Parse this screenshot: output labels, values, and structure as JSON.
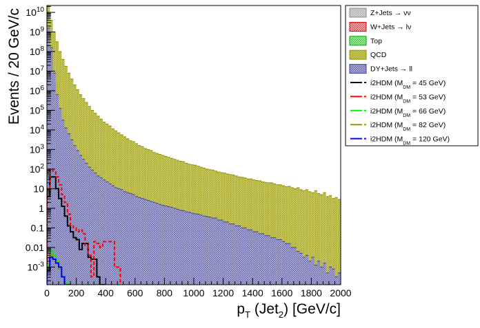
{
  "chart_data": {
    "type": "histogram",
    "xlabel_main": "p",
    "xlabel_sub": "T",
    "xlabel_mid": " (Jet",
    "xlabel_sub2": "2",
    "xlabel_tail": ") [GeV/c]",
    "ylabel": "Events / 20 GeV/c",
    "x_range": [
      0,
      2000
    ],
    "y_log_range": [
      -3.9,
      10.35
    ],
    "bin_width": 20,
    "x_ticks": [
      "0",
      "200",
      "400",
      "600",
      "800",
      "1000",
      "1200",
      "1400",
      "1600",
      "1800",
      "2000"
    ],
    "y_ticks": [
      {
        "exp": -3,
        "label_base": "10",
        "label_exp": "-3"
      },
      {
        "exp": -2,
        "label": "0.01"
      },
      {
        "exp": -1,
        "label": "0.1"
      },
      {
        "exp": 0,
        "label": "1"
      },
      {
        "exp": 1,
        "label": "10"
      },
      {
        "exp": 2,
        "label_base": "10",
        "label_exp": "2"
      },
      {
        "exp": 3,
        "label_base": "10",
        "label_exp": "3"
      },
      {
        "exp": 4,
        "label_base": "10",
        "label_exp": "4"
      },
      {
        "exp": 5,
        "label_base": "10",
        "label_exp": "5"
      },
      {
        "exp": 6,
        "label_base": "10",
        "label_exp": "6"
      },
      {
        "exp": 7,
        "label_base": "10",
        "label_exp": "7"
      },
      {
        "exp": 8,
        "label_base": "10",
        "label_exp": "8"
      },
      {
        "exp": 9,
        "label_base": "10",
        "label_exp": "9"
      },
      {
        "exp": 10,
        "label_base": "10",
        "label_exp": "10"
      }
    ],
    "stack_log10": {
      "dy_jets": [
        9.2,
        8.2,
        6.9,
        5.8,
        5.1,
        4.5,
        4.1,
        3.8,
        3.5,
        3.2,
        2.95,
        2.7,
        2.5,
        2.3,
        2.1,
        1.95,
        1.8,
        1.65,
        1.55,
        1.45,
        1.35,
        1.25,
        1.15,
        1.05,
        1.0,
        0.95,
        0.85,
        0.8,
        0.75,
        0.7,
        0.6,
        0.55,
        0.5,
        0.45,
        0.4,
        0.35,
        0.3,
        0.25,
        0.2,
        0.15,
        0.12,
        0.08,
        0.05,
        0.0,
        -0.05,
        -0.1,
        -0.12,
        -0.18,
        -0.2,
        -0.25,
        -0.28,
        -0.3,
        -0.35,
        -0.4,
        -0.42,
        -0.45,
        -0.5,
        -0.5,
        -0.6,
        -0.6,
        -0.7,
        -0.7,
        -0.8,
        -0.8,
        -0.9,
        -0.9,
        -1.0,
        -1.0,
        -1.1,
        -1.1,
        -1.2,
        -1.2,
        -1.3,
        -1.3,
        -1.4,
        -1.4,
        -1.5,
        -1.5,
        -1.6,
        -1.6,
        -1.7,
        -1.8,
        -1.8,
        -2.0,
        -2.0,
        -2.2,
        -2.3,
        -2.5,
        -2.4,
        -2.7,
        -2.5,
        -2.9,
        -2.7,
        -3.0,
        -2.8,
        -3.3,
        -3.0,
        -3.1,
        -3.5,
        -3.3
      ],
      "qcd": [
        10.3,
        9.6,
        9.0,
        8.5,
        8.0,
        7.6,
        7.25,
        6.9,
        6.6,
        6.3,
        6.05,
        5.8,
        5.6,
        5.4,
        5.2,
        5.0,
        4.85,
        4.7,
        4.55,
        4.4,
        4.3,
        4.2,
        4.05,
        3.95,
        3.85,
        3.75,
        3.65,
        3.55,
        3.45,
        3.4,
        3.3,
        3.2,
        3.15,
        3.05,
        3.0,
        2.95,
        2.85,
        2.8,
        2.75,
        2.7,
        2.65,
        2.6,
        2.55,
        2.5,
        2.45,
        2.4,
        2.38,
        2.3,
        2.25,
        2.22,
        2.2,
        2.15,
        2.1,
        2.05,
        2.0,
        1.97,
        1.95,
        1.9,
        1.85,
        1.82,
        1.8,
        1.75,
        1.72,
        1.7,
        1.65,
        1.6,
        1.58,
        1.55,
        1.5,
        1.5,
        1.45,
        1.42,
        1.4,
        1.35,
        1.32,
        1.3,
        1.3,
        1.25,
        1.2,
        1.2,
        1.15,
        1.1,
        1.12,
        1.05,
        1.0,
        1.05,
        0.95,
        0.9,
        0.95,
        0.85,
        0.8,
        0.9,
        0.75,
        0.7,
        0.8,
        0.6,
        0.65,
        0.5,
        0.55,
        0.45
      ]
    },
    "signal_log10": {
      "m45": [
        0.6,
        1.6,
        1.6,
        1.0,
        0.5,
        0.1,
        -0.4,
        -0.9,
        -1.2,
        -1.5,
        -1.6,
        -2.1,
        -1.8,
        -1.8,
        -2.5,
        -2.6,
        -2.6,
        -3.5,
        -4.5,
        -4.5
      ],
      "m53": [
        1.0,
        2.0,
        1.9,
        1.6,
        1.2,
        0.7,
        0.3,
        -0.3,
        -0.9,
        -1.0,
        -1.2,
        -1.1,
        -1.3,
        -1.9,
        -2.4,
        -3.5,
        -1.7,
        -1.8,
        -2.0,
        -1.7,
        -1.7,
        -1.7,
        -1.7,
        -3.0,
        -3.0
      ],
      "m66": [
        -2.9,
        -2.2,
        -2.4,
        -2.7,
        -3.0,
        -3.5,
        -3.8,
        -4.5
      ],
      "m82": [
        -3.0,
        -2.4,
        -2.6,
        -2.8,
        -3.1,
        -3.5,
        -3.9,
        -4.5
      ],
      "m120": [
        -3.2,
        -2.5,
        -2.6,
        -2.8,
        -3.0,
        -3.5,
        -4.0,
        -4.5
      ]
    },
    "legend": [
      {
        "label_a": "Z+Jets ",
        "arrow": "→",
        "label_b": " νν",
        "type": "fill",
        "color": "#c8c8c8",
        "hatch": "#8a8a8a"
      },
      {
        "label_a": "W+Jets ",
        "arrow": "→",
        "label_b": " lν",
        "type": "fill",
        "color": "#e8a0a8",
        "hatch": "#d40000"
      },
      {
        "label": "Top",
        "type": "fill",
        "color": "#80e080",
        "hatch": "#00aa00"
      },
      {
        "label": "QCD",
        "type": "fill",
        "color": "#c8c860",
        "hatch": "#909000"
      },
      {
        "label_a": "DY+Jets ",
        "arrow": "→",
        "label_b": " ll",
        "type": "fill",
        "color": "#a8a8d0",
        "hatch": "#4040a0"
      },
      {
        "label_main": "i2HDM (M",
        "sub": "DM",
        "mass": " =  45 GeV)",
        "type": "line",
        "color": "#000000"
      },
      {
        "label_main": "i2HDM (M",
        "sub": "DM",
        "mass": " =  53 GeV)",
        "type": "line",
        "color": "#ff0000"
      },
      {
        "label_main": "i2HDM (M",
        "sub": "DM",
        "mass": " =  66 GeV)",
        "type": "line",
        "color": "#00ee00"
      },
      {
        "label_main": "i2HDM (M",
        "sub": "DM",
        "mass": " =  82 GeV)",
        "type": "line",
        "color": "#a09000"
      },
      {
        "label_main": "i2HDM (M",
        "sub": "DM",
        "mass": " = 120 GeV)",
        "type": "line",
        "color": "#0000ff"
      }
    ],
    "colors": {
      "qcd_fill": "#c8c860",
      "qcd_line": "#909000",
      "dy_fill": "#a8a8d0",
      "dy_line": "#4040a0",
      "top_line": "#00aa00",
      "wjets_line": "#d40000"
    }
  }
}
